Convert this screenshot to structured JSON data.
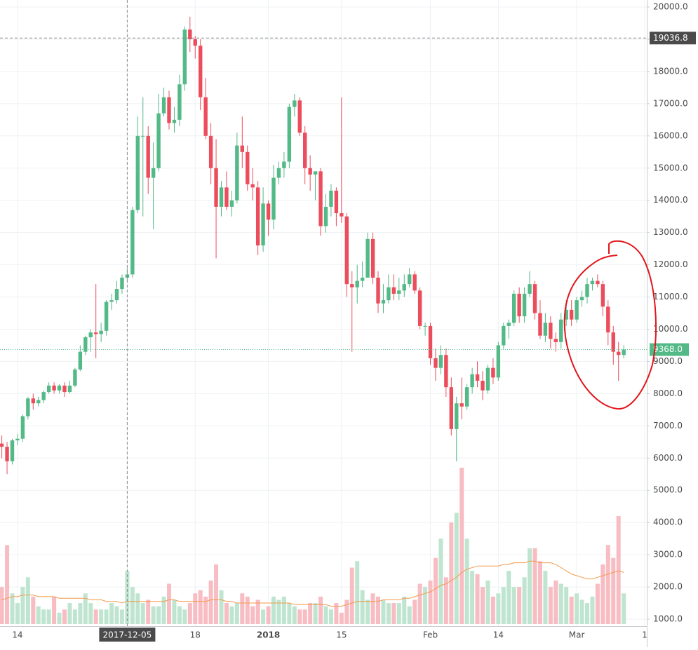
{
  "chart_data": {
    "type": "candlestick",
    "categories": [
      null,
      null,
      null,
      "14",
      null,
      null,
      null,
      null,
      null,
      null,
      null,
      null,
      null,
      null,
      null,
      null,
      null,
      null,
      null,
      null,
      null,
      null,
      null,
      null,
      "2017-12-05",
      null,
      null,
      null,
      null,
      null,
      null,
      null,
      null,
      null,
      null,
      null,
      null,
      "18",
      null,
      null,
      null,
      null,
      null,
      null,
      null,
      null,
      null,
      null,
      null,
      null,
      null,
      "2018",
      null,
      null,
      null,
      null,
      null,
      null,
      null,
      null,
      null,
      null,
      null,
      null,
      null,
      "15",
      null,
      null,
      null,
      null,
      null,
      null,
      null,
      null,
      null,
      null,
      null,
      null,
      null,
      null,
      null,
      null,
      "Feb",
      null,
      null,
      null,
      null,
      null,
      null,
      null,
      null,
      null,
      null,
      null,
      null,
      "14",
      null,
      null,
      null,
      null,
      null,
      null,
      null,
      null,
      null,
      null,
      null,
      null,
      null,
      null,
      "Mar",
      null,
      null,
      null,
      null,
      null,
      null,
      null,
      null,
      null,
      null,
      null,
      null,
      "1"
    ],
    "open": [
      6450,
      6350,
      5900,
      6550,
      6600,
      7300,
      7850,
      7700,
      7800,
      8050,
      8250,
      8100,
      8250,
      8050,
      8250,
      8750,
      9300,
      9750,
      9900,
      9850,
      9950,
      10850,
      10900,
      11250,
      11600,
      11700,
      13700,
      16000,
      16000,
      14700,
      15000,
      16700,
      17200,
      16400,
      16500,
      17600,
      19300,
      19000,
      18800,
      17200,
      16000,
      15000,
      13800,
      14400,
      13800,
      14000,
      15700,
      15500,
      14500,
      14400,
      12600,
      13900,
      13400,
      14700,
      15000,
      15200,
      16900,
      17100,
      16100,
      15000,
      14800,
      14900,
      13200,
      13800,
      14300,
      13600,
      13500,
      11400,
      11300,
      11500,
      11600,
      12800,
      11600,
      10800,
      10900,
      11300,
      11100,
      11200,
      11400,
      11700,
      11200,
      10100,
      10100,
      9100,
      8800,
      9200,
      8200,
      6900,
      7700,
      7600,
      8200,
      8600,
      8400,
      8100,
      8800,
      8500,
      9500,
      10100,
      10200,
      11100,
      10400,
      11100,
      11400,
      10500,
      9800,
      10200,
      9700,
      9600,
      10300,
      10600,
      10300,
      10900,
      11000,
      11400,
      11500,
      11400,
      10700,
      9900,
      9300,
      9200,
      null,
      null,
      null,
      null
    ],
    "high": [
      6700,
      6500,
      6600,
      6750,
      7350,
      7900,
      8000,
      7900,
      8100,
      8350,
      8350,
      8300,
      8350,
      8400,
      8800,
      9500,
      9800,
      10000,
      11400,
      10200,
      10900,
      11100,
      11500,
      11700,
      11900,
      13800,
      16600,
      17200,
      16300,
      15800,
      17300,
      17500,
      17400,
      16900,
      17900,
      19400,
      19700,
      19100,
      19000,
      17800,
      16400,
      15900,
      14600,
      14900,
      14300,
      16100,
      16600,
      15700,
      15000,
      14600,
      14400,
      14000,
      15100,
      15200,
      15500,
      17000,
      17300,
      17200,
      16300,
      15400,
      14900,
      15000,
      14200,
      14500,
      14400,
      17200,
      13600,
      11800,
      12000,
      12100,
      13000,
      13000,
      11800,
      11400,
      11700,
      11700,
      11600,
      11700,
      11900,
      11800,
      11300,
      10200,
      10200,
      9400,
      9500,
      9400,
      8500,
      7900,
      8500,
      8300,
      8800,
      9000,
      8700,
      8900,
      9100,
      9600,
      10200,
      10300,
      11200,
      11300,
      11300,
      11800,
      11500,
      10900,
      10500,
      10400,
      9900,
      10500,
      10900,
      10900,
      11000,
      11200,
      11600,
      11600,
      11700,
      11500,
      10900,
      10100,
      9600,
      9500,
      null,
      null,
      null,
      null
    ],
    "low": [
      6000,
      5500,
      5800,
      6400,
      6500,
      7200,
      7500,
      7600,
      7700,
      8000,
      8000,
      8000,
      7900,
      8000,
      8200,
      8700,
      9200,
      9300,
      9100,
      9600,
      9800,
      10600,
      10800,
      11100,
      11500,
      11600,
      13600,
      13500,
      14200,
      13100,
      14900,
      16600,
      16200,
      16100,
      16300,
      17400,
      18600,
      18400,
      16800,
      15900,
      14500,
      12200,
      13500,
      13700,
      13500,
      13900,
      15000,
      14300,
      14000,
      12300,
      12400,
      12900,
      13100,
      14500,
      14700,
      15000,
      16600,
      16000,
      14500,
      14300,
      14000,
      12900,
      13000,
      13500,
      13200,
      13300,
      11000,
      9300,
      10800,
      11300,
      11600,
      11400,
      10500,
      10500,
      10800,
      10900,
      10900,
      11000,
      11300,
      11100,
      10000,
      9800,
      8900,
      8400,
      8600,
      7900,
      6700,
      5900,
      7200,
      7500,
      8000,
      8200,
      7800,
      8000,
      8300,
      8400,
      9400,
      9700,
      10100,
      10200,
      10200,
      11000,
      10300,
      9700,
      9600,
      9400,
      9300,
      9400,
      10100,
      10100,
      10200,
      10700,
      10800,
      11200,
      11300,
      10400,
      9500,
      8900,
      8400,
      9100,
      null,
      null,
      null,
      null
    ],
    "close": [
      6350,
      5900,
      6550,
      6600,
      7300,
      7850,
      7700,
      7800,
      8050,
      8250,
      8100,
      8250,
      8050,
      8250,
      8750,
      9300,
      9750,
      9900,
      9850,
      9950,
      10850,
      10900,
      11250,
      11600,
      11700,
      13700,
      16000,
      16000,
      14700,
      15000,
      16700,
      17200,
      16400,
      16500,
      17600,
      19300,
      19000,
      18800,
      17200,
      16000,
      15000,
      13800,
      14400,
      13800,
      14000,
      15700,
      15500,
      14500,
      14400,
      12600,
      13900,
      13400,
      14700,
      15000,
      15200,
      16900,
      17100,
      16100,
      15000,
      14800,
      14900,
      13200,
      13800,
      14300,
      13600,
      13500,
      11400,
      11300,
      11500,
      11600,
      12800,
      11600,
      10800,
      10900,
      11300,
      11100,
      11200,
      11400,
      11700,
      11200,
      10100,
      10100,
      9100,
      8800,
      9200,
      8200,
      6900,
      7700,
      7600,
      8200,
      8600,
      8400,
      8100,
      8800,
      8500,
      9500,
      10100,
      10200,
      11100,
      10400,
      11100,
      11400,
      10500,
      9800,
      10200,
      9700,
      9600,
      10300,
      10600,
      10300,
      10900,
      11000,
      11400,
      11500,
      11400,
      10700,
      9900,
      9300,
      9200,
      9368,
      null,
      null,
      null,
      null
    ],
    "volume": [
      2000,
      3300,
      1800,
      1500,
      2000,
      2300,
      1700,
      1400,
      1300,
      1300,
      1700,
      1200,
      1300,
      1500,
      1300,
      1500,
      1800,
      1500,
      1300,
      1300,
      1300,
      1500,
      1400,
      1300,
      2500,
      2000,
      1800,
      1500,
      1600,
      1400,
      1400,
      1700,
      2100,
      1600,
      1400,
      1300,
      1500,
      1800,
      1900,
      1700,
      2200,
      2700,
      1900,
      1500,
      1400,
      1500,
      1800,
      1700,
      1400,
      1600,
      1300,
      1400,
      1700,
      1600,
      1700,
      1500,
      1400,
      1300,
      1300,
      1500,
      1500,
      1700,
      1400,
      1300,
      1500,
      1200,
      1600,
      2600,
      2800,
      1900,
      1600,
      1800,
      1700,
      1600,
      1500,
      1500,
      1500,
      1700,
      1400,
      1600,
      2100,
      2000,
      2200,
      2900,
      3500,
      2300,
      4000,
      4300,
      5700,
      3500,
      2500,
      2400,
      2000,
      2200,
      1700,
      1800,
      2000,
      2500,
      2000,
      2000,
      2300,
      3200,
      3200,
      2800,
      2500,
      2000,
      2200,
      2100,
      2000,
      1700,
      1800,
      1600,
      1500,
      1700,
      2100,
      2700,
      3300,
      2900,
      4200,
      1800,
      null,
      null,
      null,
      null
    ],
    "volume_ma": [
      1600,
      1650,
      1700,
      1700,
      1750,
      1750,
      1750,
      1700,
      1700,
      1700,
      1700,
      1650,
      1650,
      1650,
      1650,
      1650,
      1650,
      1600,
      1600,
      1600,
      1550,
      1550,
      1550,
      1500,
      1550,
      1550,
      1550,
      1550,
      1550,
      1550,
      1550,
      1550,
      1600,
      1600,
      1550,
      1550,
      1550,
      1550,
      1550,
      1550,
      1600,
      1600,
      1600,
      1550,
      1550,
      1500,
      1500,
      1500,
      1500,
      1500,
      1500,
      1500,
      1500,
      1500,
      1500,
      1500,
      1450,
      1450,
      1450,
      1450,
      1450,
      1450,
      1450,
      1400,
      1400,
      1400,
      1450,
      1500,
      1550,
      1550,
      1550,
      1550,
      1550,
      1600,
      1600,
      1600,
      1600,
      1650,
      1650,
      1700,
      1750,
      1800,
      1850,
      1950,
      2050,
      2100,
      2200,
      2300,
      2450,
      2550,
      2600,
      2650,
      2650,
      2650,
      2650,
      2650,
      2700,
      2700,
      2750,
      2750,
      2750,
      2800,
      2800,
      2750,
      2750,
      2750,
      2700,
      2600,
      2500,
      2400,
      2350,
      2300,
      2250,
      2250,
      2300,
      2350,
      2400,
      2450,
      2500,
      2450,
      null,
      null,
      null,
      null
    ],
    "up_color": "#53b987",
    "down_color": "#eb4d5c",
    "volume_up_color": "#bfe5d0",
    "volume_down_color": "#f8bcc3",
    "volume_ma_color": "#f39a4b",
    "ylim": [
      848,
      20218
    ],
    "yticks": [
      {
        "value": 1000,
        "label": "1000.0"
      },
      {
        "value": 2000,
        "label": "2000.0"
      },
      {
        "value": 3000,
        "label": "3000.0"
      },
      {
        "value": 4000,
        "label": "4000.0"
      },
      {
        "value": 5000,
        "label": "5000.0"
      },
      {
        "value": 6000,
        "label": "6000.0"
      },
      {
        "value": 7000,
        "label": "7000.0"
      },
      {
        "value": 8000,
        "label": "8000.0"
      },
      {
        "value": 9000,
        "label": "9000.0"
      },
      {
        "value": 10000,
        "label": "10000.0"
      },
      {
        "value": 11000,
        "label": "11000.0"
      },
      {
        "value": 12000,
        "label": "12000.0"
      },
      {
        "value": 13000,
        "label": "13000.0"
      },
      {
        "value": 14000,
        "label": "14000.0"
      },
      {
        "value": 15000,
        "label": "15000.0"
      },
      {
        "value": 16000,
        "label": "16000.0"
      },
      {
        "value": 17000,
        "label": "17000.0"
      },
      {
        "value": 18000,
        "label": "18000.0"
      },
      {
        "value": 19000,
        "label": "19000.0"
      },
      {
        "value": 20000,
        "label": "20000.0"
      }
    ],
    "grid": true,
    "last_price": {
      "value": 9368,
      "label": "9368.0"
    },
    "crosshair": {
      "x": "2017-12-05",
      "y": 19036.8
    }
  }
}
